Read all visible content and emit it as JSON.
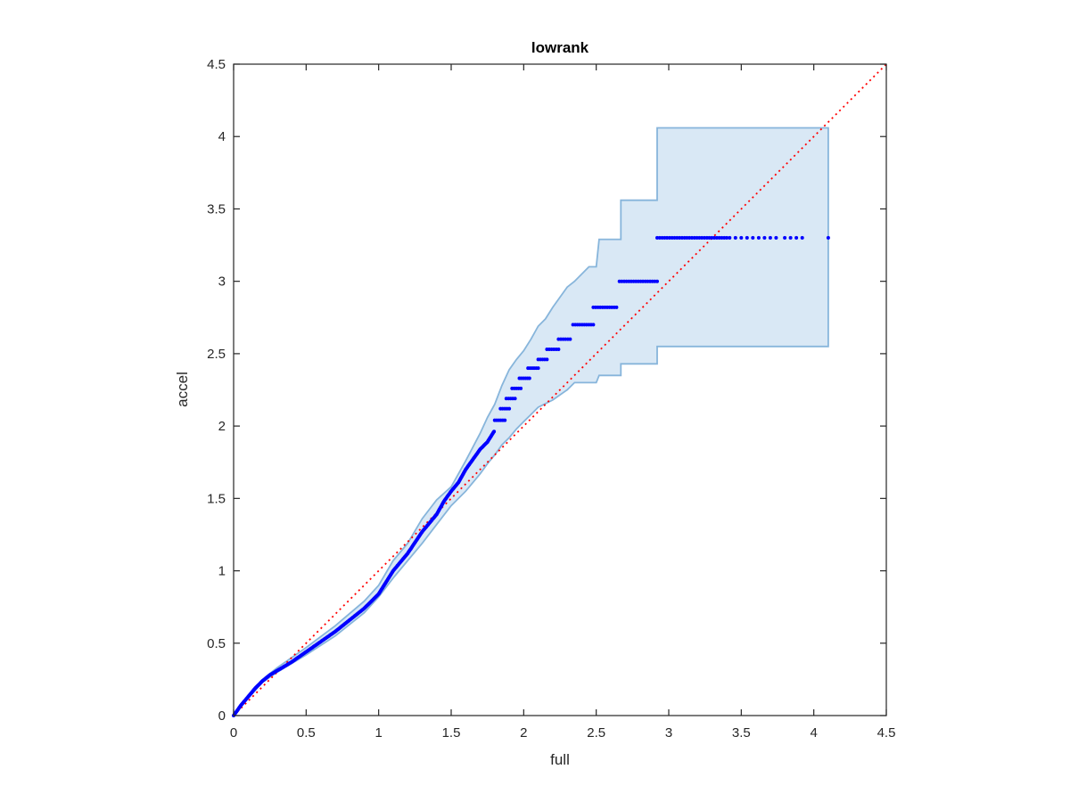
{
  "chart_data": {
    "type": "scatter",
    "title": "lowrank",
    "xlabel": "full",
    "ylabel": "accel",
    "xlim": [
      0,
      4.5
    ],
    "ylim": [
      0,
      4.5
    ],
    "xticks": [
      "0",
      "0.5",
      "1",
      "1.5",
      "2",
      "2.5",
      "3",
      "3.5",
      "4",
      "4.5"
    ],
    "yticks": [
      "0",
      "0.5",
      "1",
      "1.5",
      "2",
      "2.5",
      "3",
      "3.5",
      "4",
      "4.5"
    ],
    "grid": false,
    "colors": {
      "points": "#0000ff",
      "band_fill": "#d9e8f5",
      "band_edge": "#87b5db",
      "reference_line": "#ff0000",
      "axes": "#262626"
    },
    "reference_line": {
      "style": "dotted",
      "x": [
        0,
        4.5
      ],
      "y": [
        0,
        4.5
      ]
    },
    "points_curve": {
      "x": [
        0,
        0.05,
        0.1,
        0.15,
        0.2,
        0.25,
        0.3,
        0.35,
        0.4,
        0.5,
        0.6,
        0.7,
        0.8,
        0.9,
        1.0,
        1.05,
        1.1,
        1.2,
        1.3,
        1.4,
        1.45,
        1.5,
        1.55,
        1.6,
        1.65,
        1.7,
        1.75,
        1.8
      ],
      "y": [
        0,
        0.07,
        0.13,
        0.19,
        0.24,
        0.28,
        0.31,
        0.34,
        0.37,
        0.44,
        0.51,
        0.58,
        0.66,
        0.74,
        0.84,
        0.92,
        1.0,
        1.12,
        1.27,
        1.39,
        1.48,
        1.55,
        1.61,
        1.7,
        1.77,
        1.84,
        1.89,
        1.97
      ]
    },
    "points_steps": [
      {
        "y": 2.04,
        "x": [
          1.8,
          1.87
        ]
      },
      {
        "y": 2.12,
        "x": [
          1.84,
          1.9
        ]
      },
      {
        "y": 2.19,
        "x": [
          1.88,
          1.94
        ]
      },
      {
        "y": 2.26,
        "x": [
          1.92,
          1.98
        ]
      },
      {
        "y": 2.33,
        "x": [
          1.97,
          2.04
        ]
      },
      {
        "y": 2.4,
        "x": [
          2.03,
          2.1
        ]
      },
      {
        "y": 2.46,
        "x": [
          2.1,
          2.16
        ]
      },
      {
        "y": 2.53,
        "x": [
          2.16,
          2.24
        ]
      },
      {
        "y": 2.6,
        "x": [
          2.24,
          2.32
        ]
      },
      {
        "y": 2.7,
        "x": [
          2.34,
          2.48
        ]
      },
      {
        "y": 2.82,
        "x": [
          2.48,
          2.64
        ]
      },
      {
        "y": 3.0,
        "x": [
          2.66,
          2.92
        ]
      },
      {
        "y": 3.3,
        "x": [
          2.92,
          3.4
        ]
      }
    ],
    "sparse_points": {
      "x": [
        3.42,
        3.46,
        3.5,
        3.54,
        3.58,
        3.62,
        3.66,
        3.7,
        3.74,
        3.8,
        3.84,
        3.88,
        3.92,
        4.1
      ],
      "y": [
        3.3,
        3.3,
        3.3,
        3.3,
        3.3,
        3.3,
        3.3,
        3.3,
        3.3,
        3.3,
        3.3,
        3.3,
        3.3,
        3.3
      ]
    },
    "band_upper": {
      "x": [
        0,
        0.1,
        0.2,
        0.3,
        0.5,
        0.7,
        0.9,
        1.0,
        1.1,
        1.2,
        1.3,
        1.4,
        1.5,
        1.6,
        1.7,
        1.75,
        1.8,
        1.85,
        1.9,
        1.95,
        2.0,
        2.05,
        2.1,
        2.15,
        2.2,
        2.3,
        2.35,
        2.45,
        2.5,
        2.52,
        2.67,
        2.67,
        2.92,
        2.92,
        4.1
      ],
      "y": [
        0,
        0.14,
        0.25,
        0.33,
        0.47,
        0.62,
        0.79,
        0.9,
        1.07,
        1.19,
        1.36,
        1.49,
        1.58,
        1.76,
        1.95,
        2.06,
        2.15,
        2.28,
        2.39,
        2.46,
        2.52,
        2.6,
        2.69,
        2.74,
        2.82,
        2.96,
        3.0,
        3.1,
        3.1,
        3.29,
        3.29,
        3.56,
        3.56,
        4.06,
        4.06
      ]
    },
    "band_lower": {
      "x": [
        4.1,
        2.92,
        2.92,
        2.67,
        2.67,
        2.52,
        2.5,
        2.35,
        2.3,
        2.2,
        2.1,
        2.05,
        2.0,
        1.95,
        1.9,
        1.85,
        1.8,
        1.75,
        1.7,
        1.6,
        1.5,
        1.4,
        1.3,
        1.2,
        1.1,
        1.0,
        0.9,
        0.7,
        0.5,
        0.3,
        0.2,
        0.1,
        0
      ],
      "y": [
        2.55,
        2.55,
        2.43,
        2.43,
        2.35,
        2.35,
        2.3,
        2.3,
        2.25,
        2.18,
        2.13,
        2.08,
        2.03,
        1.98,
        1.92,
        1.87,
        1.8,
        1.74,
        1.67,
        1.55,
        1.45,
        1.32,
        1.19,
        1.07,
        0.95,
        0.82,
        0.71,
        0.55,
        0.42,
        0.3,
        0.23,
        0.12,
        0
      ]
    }
  }
}
